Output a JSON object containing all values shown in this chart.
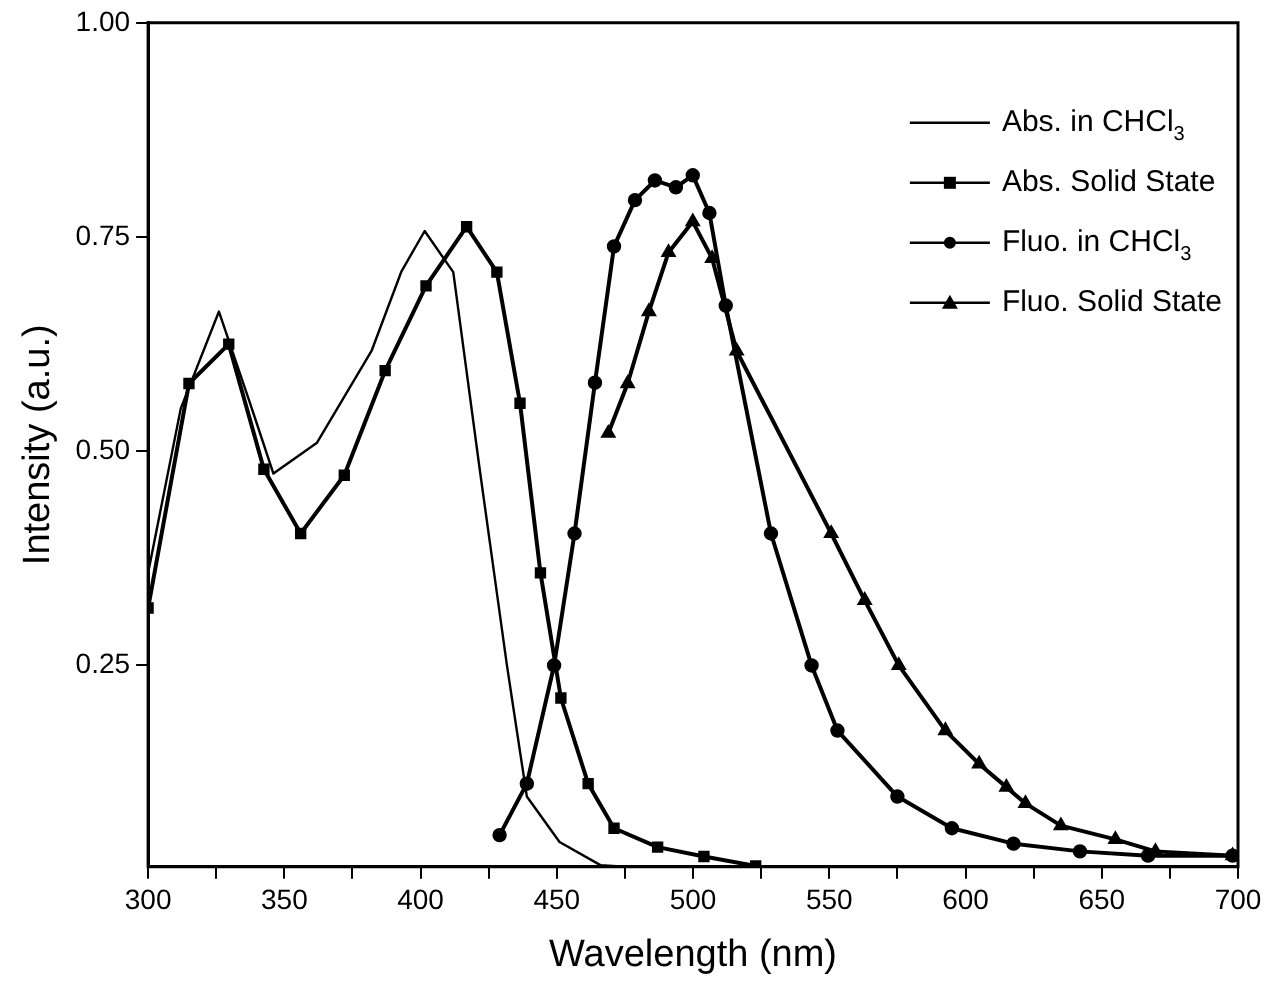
{
  "chart_data": {
    "type": "line",
    "xlabel": "Wavelength (nm)",
    "ylabel": "Intensity (a.u.)",
    "xlim": [
      300,
      700
    ],
    "ylim": [
      0.015,
      1.0
    ],
    "xticks": [
      300,
      {
        "value": 325,
        "label": null
      },
      350,
      {
        "value": 375,
        "label": null
      },
      400,
      {
        "value": 425,
        "label": null
      },
      450,
      {
        "value": 475,
        "label": null
      },
      500,
      {
        "value": 525,
        "label": null
      },
      550,
      {
        "value": 575,
        "label": null
      },
      600,
      {
        "value": 625,
        "label": null
      },
      650,
      {
        "value": 675,
        "label": null
      },
      700
    ],
    "yticks": [
      0.25,
      {
        "value": 0.5,
        "label": "0.50"
      },
      0.75,
      {
        "value": 1.0,
        "label": "1.00"
      }
    ],
    "grid": false,
    "legend": "top right",
    "line_style": "solid",
    "series": [
      {
        "name": "Abs. in CHCl$_{3}$",
        "color": "#000000",
        "marker": "none",
        "x": [
          300,
          312,
          326,
          337,
          346,
          362,
          382,
          393,
          401.5,
          412,
          421.7,
          431.7,
          439,
          451,
          466,
          475
        ],
        "values": [
          0.358,
          0.55,
          0.663,
          0.56,
          0.474,
          0.51,
          0.617,
          0.71,
          0.757,
          0.709,
          0.479,
          0.25,
          0.097,
          0.044,
          0.017,
          0.015
        ]
      },
      {
        "name": "Abs. Solid State",
        "color": "#000000",
        "marker": "square",
        "x": [
          300,
          315,
          329.6,
          342.5,
          356,
          372,
          387,
          402,
          416.9,
          428,
          436.5,
          444,
          451.5,
          461.5,
          471,
          487,
          504,
          523
        ],
        "values": [
          0.317,
          0.579,
          0.625,
          0.479,
          0.404,
          0.472,
          0.594,
          0.693,
          0.762,
          0.709,
          0.556,
          0.358,
          0.212,
          0.112,
          0.06,
          0.038,
          0.027,
          0.016
        ]
      },
      {
        "name": "Fluo. in CHCl$_{3}$",
        "color": "#000000",
        "marker": "circle",
        "x": [
          429,
          439,
          449,
          456.5,
          464,
          471,
          478.7,
          486,
          493.7,
          499.9,
          506,
          512,
          528.6,
          543.5,
          553,
          575,
          595,
          617.6,
          642,
          667,
          698
        ],
        "values": [
          0.052,
          0.112,
          0.25,
          0.404,
          0.58,
          0.739,
          0.793,
          0.816,
          0.808,
          0.822,
          0.778,
          0.67,
          0.404,
          0.25,
          0.174,
          0.097,
          0.06,
          0.042,
          0.033,
          0.028,
          0.028
        ]
      },
      {
        "name": "Fluo. Solid State",
        "color": "#000000",
        "marker": "triangle",
        "x": [
          468.9,
          476,
          483.8,
          491,
          499.9,
          507,
          516,
          550.7,
          563,
          575.5,
          592.6,
          605,
          615,
          622,
          635,
          655,
          669.7,
          698
        ],
        "values": [
          0.521,
          0.579,
          0.663,
          0.732,
          0.768,
          0.725,
          0.617,
          0.404,
          0.326,
          0.25,
          0.174,
          0.135,
          0.108,
          0.089,
          0.063,
          0.047,
          0.033,
          0.028
        ]
      }
    ]
  }
}
